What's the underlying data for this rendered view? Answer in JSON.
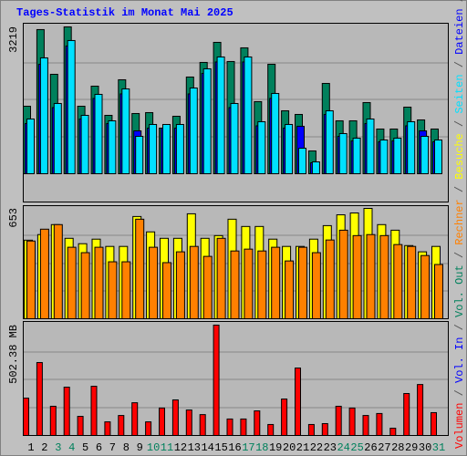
{
  "chart_data": [
    {
      "type": "bar",
      "title": "Tages-Statistik im Monat Mai 2025",
      "ylim": [
        0,
        3219
      ],
      "yticks": [
        3219
      ],
      "series": [
        {
          "name": "Anfragen",
          "color": "#00805c",
          "values": [
            1480,
            3160,
            2180,
            3219,
            1480,
            1920,
            1280,
            2060,
            1320,
            1340,
            1000,
            1260,
            2120,
            2440,
            2880,
            2460,
            2760,
            1580,
            2400,
            1380,
            1300,
            500,
            1980,
            1160,
            1160,
            1560,
            980,
            980,
            1460,
            1180,
            980
          ]
        },
        {
          "name": "Dateien",
          "color": "#0000ff",
          "values": [
            1100,
            2400,
            1450,
            2800,
            1200,
            1650,
            1100,
            1750,
            940,
            1000,
            1000,
            1000,
            1750,
            2200,
            2450,
            1450,
            2450,
            1050,
            1650,
            1000,
            1040,
            240,
            1300,
            820,
            720,
            1100,
            700,
            720,
            1050,
            940,
            700
          ]
        },
        {
          "name": "Seiten",
          "color": "#00e0ff",
          "values": [
            1200,
            2540,
            1540,
            2920,
            1280,
            1740,
            1160,
            1860,
            820,
            1080,
            1080,
            1080,
            1880,
            2300,
            2560,
            1540,
            2560,
            1140,
            1760,
            1080,
            560,
            260,
            1380,
            880,
            780,
            1200,
            740,
            780,
            1140,
            820,
            740
          ]
        }
      ]
    },
    {
      "type": "bar",
      "ylim": [
        0,
        653
      ],
      "yticks": [
        653
      ],
      "series": [
        {
          "name": "Besuche",
          "color": "#ffff00",
          "values": [
            465,
            498,
            557,
            476,
            444,
            471,
            428,
            428,
            605,
            514,
            476,
            476,
            621,
            476,
            492,
            589,
            546,
            546,
            471,
            428,
            428,
            471,
            551,
            615,
            626,
            653,
            557,
            524,
            433,
            396,
            428
          ]
        },
        {
          "name": "Rechner",
          "color": "#ff8000",
          "values": [
            460,
            530,
            557,
            423,
            391,
            423,
            337,
            337,
            589,
            423,
            332,
            396,
            428,
            369,
            476,
            401,
            412,
            401,
            423,
            342,
            423,
            391,
            466,
            524,
            492,
            498,
            492,
            439,
            428,
            374,
            321
          ]
        }
      ]
    },
    {
      "type": "bar",
      "categories": [
        "1",
        "2",
        "3",
        "4",
        "5",
        "6",
        "7",
        "8",
        "9",
        "10",
        "11",
        "12",
        "13",
        "14",
        "15",
        "16",
        "17",
        "18",
        "19",
        "20",
        "21",
        "22",
        "23",
        "24",
        "25",
        "26",
        "27",
        "28",
        "29",
        "30",
        "31"
      ],
      "highlight_categories": [
        "3",
        "4",
        "10",
        "11",
        "17",
        "18",
        "24",
        "25",
        "31"
      ],
      "highlight_color": "#00805c",
      "ylim": [
        0,
        502.38
      ],
      "yticks": [
        {
          "value": 502.38,
          "label": "502.38 MB"
        }
      ],
      "series": [
        {
          "name": "Volumen",
          "color": "#ff0000",
          "values": [
            170,
            332,
            133,
            220,
            87,
            224,
            62,
            91,
            149,
            62,
            125,
            162,
            116,
            95,
            502.38,
            75,
            75,
            112,
            50,
            166,
            307,
            50,
            54,
            133,
            125,
            91,
            100,
            33,
            191,
            232,
            104
          ]
        },
        {
          "name": "Vol. In",
          "color": "#0000ff"
        },
        {
          "name": "Vol. Out",
          "color": "#00805c"
        }
      ]
    }
  ],
  "legend_separator": " / "
}
